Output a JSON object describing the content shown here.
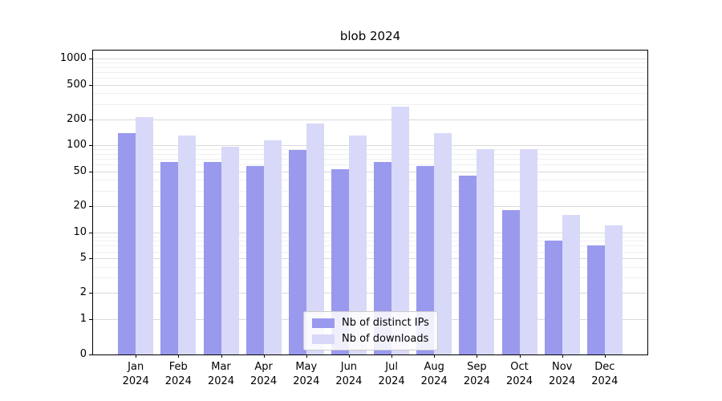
{
  "chart_data": {
    "type": "bar",
    "title": "blob 2024",
    "categories": [
      "Jan",
      "Feb",
      "Mar",
      "Apr",
      "May",
      "Jun",
      "Jul",
      "Aug",
      "Sep",
      "Oct",
      "Nov",
      "Dec"
    ],
    "year_label": "2024",
    "series": [
      {
        "name": "Nb of distinct IPs",
        "color": "#9999ee",
        "values": [
          140,
          65,
          65,
          58,
          88,
          53,
          65,
          58,
          45,
          18,
          8,
          7
        ]
      },
      {
        "name": "Nb of downloads",
        "color": "#d8d8f8",
        "values": [
          210,
          130,
          97,
          115,
          180,
          130,
          280,
          140,
          90,
          90,
          16,
          12
        ]
      }
    ],
    "yticks": [
      0,
      1,
      2,
      5,
      10,
      20,
      50,
      100,
      200,
      500,
      1000
    ],
    "ylim": [
      0,
      1000
    ],
    "yscale": "symlog",
    "grid": true,
    "legend_position": "lower center"
  }
}
